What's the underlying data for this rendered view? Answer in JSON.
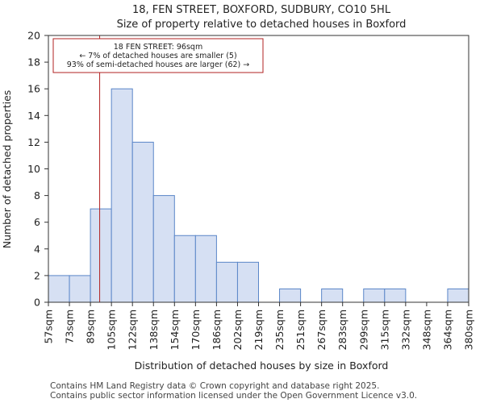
{
  "chart_data": {
    "type": "bar",
    "title_line1": "18, FEN STREET, BOXFORD, SUDBURY, CO10 5HL",
    "title_line2": "Size of property relative to detached houses in Boxford",
    "xlabel": "Distribution of detached houses by size in Boxford",
    "ylabel": "Number of detached properties",
    "bin_edges": [
      "57sqm",
      "73sqm",
      "89sqm",
      "105sqm",
      "122sqm",
      "138sqm",
      "154sqm",
      "170sqm",
      "186sqm",
      "202sqm",
      "219sqm",
      "235sqm",
      "251sqm",
      "267sqm",
      "283sqm",
      "299sqm",
      "315sqm",
      "332sqm",
      "348sqm",
      "364sqm",
      "380sqm"
    ],
    "values": [
      2,
      2,
      7,
      16,
      12,
      8,
      5,
      5,
      3,
      3,
      0,
      1,
      0,
      1,
      0,
      1,
      1,
      0,
      0,
      1
    ],
    "ylim": [
      0,
      20
    ],
    "yticks": [
      0,
      2,
      4,
      6,
      8,
      10,
      12,
      14,
      16,
      18,
      20
    ],
    "grid": false,
    "bar_fill": "#d6e0f3",
    "bar_edge": "#5a86c8",
    "marker": {
      "value_bin_pos": 2.44,
      "color": "#b22222",
      "annotation_lines": [
        "18 FEN STREET: 96sqm",
        "← 7% of detached houses are smaller (5)",
        "93% of semi-detached houses are larger (62) →"
      ]
    }
  },
  "footer": {
    "line1": "Contains HM Land Registry data © Crown copyright and database right 2025.",
    "line2": "Contains public sector information licensed under the Open Government Licence v3.0."
  }
}
